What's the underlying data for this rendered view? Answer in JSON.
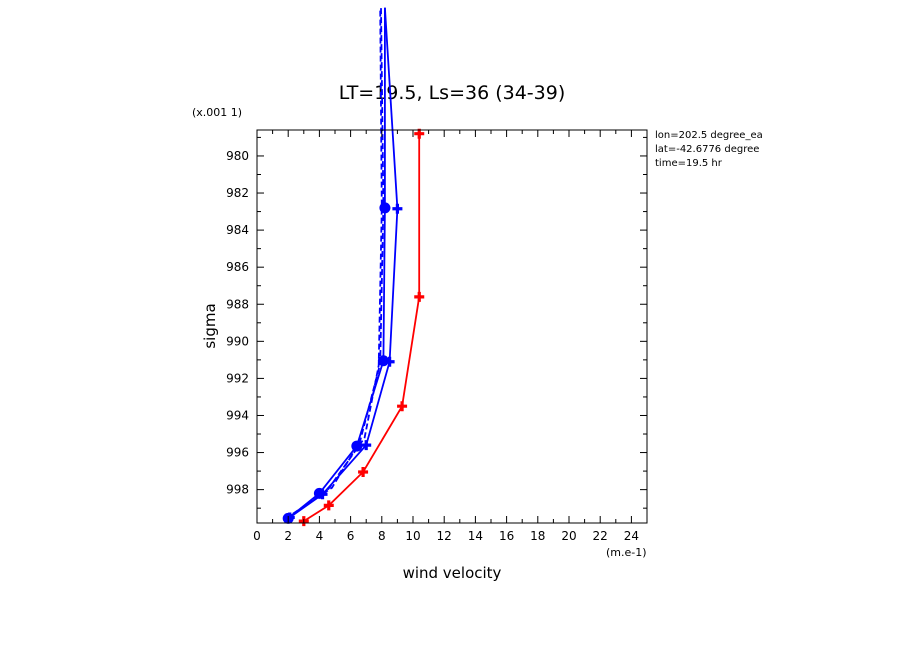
{
  "chart_data": {
    "type": "line",
    "title": "LT=19.5, Ls=36 (34-39)",
    "xlabel": "wind velocity",
    "xunit": "(m.e-1)",
    "ylabel": "sigma",
    "yunit": "(x.001 1)",
    "xlim": [
      0,
      25
    ],
    "ylim": [
      999.8,
      978.6
    ],
    "xticks": [
      "0",
      "2",
      "4",
      "6",
      "8",
      "10",
      "12",
      "14",
      "16",
      "18",
      "20",
      "22",
      "24"
    ],
    "yticks": [
      "980",
      "982",
      "984",
      "986",
      "988",
      "990",
      "992",
      "994",
      "996",
      "998"
    ],
    "info": [
      "lon=202.5 degree_ea",
      "lat=-42.6776 degree",
      "time=19.5 hr"
    ],
    "series": [
      {
        "color": "#ff0000",
        "style": "solid",
        "marker": "cross",
        "points": [
          [
            3.0,
            999.7
          ],
          [
            4.6,
            998.85
          ],
          [
            6.8,
            997.05
          ],
          [
            9.3,
            993.5
          ],
          [
            10.4,
            987.6
          ],
          [
            10.4,
            978.8
          ]
        ]
      },
      {
        "color": "#0000ff",
        "style": "solid",
        "marker": "dot",
        "points": [
          [
            2.0,
            999.55
          ],
          [
            4.0,
            998.2
          ],
          [
            6.4,
            995.65
          ],
          [
            8.1,
            991.05
          ],
          [
            8.2,
            982.8
          ],
          [
            8.2,
            972.0
          ]
        ]
      },
      {
        "color": "#0000ff",
        "style": "solid",
        "marker": "cross",
        "points": [
          [
            2.1,
            999.5
          ],
          [
            4.2,
            998.25
          ],
          [
            7.0,
            995.6
          ],
          [
            8.5,
            991.1
          ],
          [
            9.0,
            982.85
          ],
          [
            8.2,
            972.0
          ]
        ]
      },
      {
        "color": "#0000ff",
        "style": "dashed",
        "marker": "none",
        "points": [
          [
            2.2,
            999.4
          ],
          [
            4.5,
            998.05
          ],
          [
            6.9,
            995.2
          ],
          [
            7.8,
            991.3
          ],
          [
            8.0,
            982.8
          ],
          [
            7.9,
            972.0
          ]
        ]
      },
      {
        "color": "#0000ff",
        "style": "dashed",
        "marker": "none",
        "points": [
          [
            2.3,
            999.3
          ],
          [
            4.8,
            997.9
          ],
          [
            6.6,
            995.4
          ],
          [
            7.9,
            991.2
          ],
          [
            8.1,
            982.6
          ],
          [
            7.95,
            972.0
          ]
        ]
      }
    ]
  }
}
